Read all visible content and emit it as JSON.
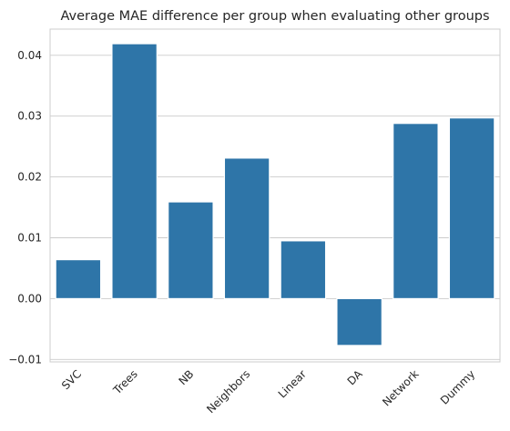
{
  "chart_data": {
    "type": "bar",
    "title": "Average MAE difference per group when evaluating other groups",
    "xlabel": "",
    "ylabel": "",
    "categories": [
      "SVC",
      "Trees",
      "NB",
      "Neighbors",
      "Linear",
      "DA",
      "Network",
      "Dummy"
    ],
    "values": [
      0.0064,
      0.0419,
      0.0159,
      0.0231,
      0.0095,
      -0.0077,
      0.0288,
      0.0297
    ],
    "yticks": [
      -0.01,
      0.0,
      0.01,
      0.02,
      0.03,
      0.04
    ],
    "ytick_labels": [
      "−0.01",
      "0.00",
      "0.01",
      "0.02",
      "0.03",
      "0.04"
    ],
    "ylim": [
      -0.0104,
      0.0443
    ],
    "grid": true,
    "bar_color": "#2e75a8",
    "grid_color": "#cccccc",
    "text_color": "#262626"
  }
}
